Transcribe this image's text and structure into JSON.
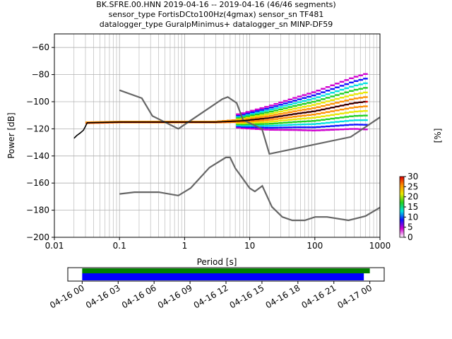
{
  "title_lines": [
    "BK.SFRE.00.HNN   2019-04-16 -- 2019-04-16  (46/46 segments)",
    "sensor_type FortisDCto100Hz(4gmax) sensor_sn TF481",
    "datalogger_type GuralpMinimus+ datalogger_sn MINP-DF59"
  ],
  "chart_data": [
    {
      "type": "heatmap",
      "xlabel": "Period [s]",
      "ylabel": "Power [dB]",
      "xscale": "log",
      "xlim": [
        0.01,
        1000
      ],
      "ylim": [
        -200,
        -50
      ],
      "x_ticks": [
        "0.01",
        "0.1",
        "1",
        "10",
        "100",
        "1000"
      ],
      "y_ticks": [
        "−200",
        "−180",
        "−160",
        "−140",
        "−120",
        "−100",
        "−80",
        "−60"
      ],
      "grid": true,
      "colorbar": {
        "label": "[%]",
        "ticks": [
          "0",
          "5",
          "10",
          "15",
          "20",
          "25",
          "30"
        ],
        "range": [
          0,
          30
        ],
        "colors": [
          "#ffffff",
          "#d000d0",
          "#1010ff",
          "#00e0e0",
          "#20d020",
          "#e8e800",
          "#ff9000",
          "#e00000"
        ]
      },
      "mode_curve": {
        "period": [
          0.02,
          0.022,
          0.025,
          0.028,
          0.032,
          0.1,
          0.3,
          1,
          2,
          3,
          5,
          8,
          10,
          20,
          50,
          100,
          200,
          400,
          600
        ],
        "power": [
          -127,
          -125,
          -123,
          -121,
          -115.5,
          -115,
          -115,
          -115,
          -115,
          -115,
          -114.5,
          -114,
          -113.5,
          -112,
          -109,
          -107,
          -104,
          -101,
          -100
        ]
      },
      "noise_models": [
        {
          "period": [
            0.1,
            0.22,
            0.32,
            0.8,
            3.8,
            4.6,
            6.3,
            7.9,
            15.4,
            20,
            354.8,
            1000
          ],
          "power": [
            -91.5,
            -97.4,
            -110.5,
            -120,
            -98,
            -96.5,
            -101,
            -113.5,
            -120,
            -138.5,
            -126,
            -111.5
          ]
        },
        {
          "period": [
            0.1,
            0.17,
            0.4,
            0.8,
            1.24,
            2.4,
            4.3,
            5,
            6,
            10,
            12,
            15.6,
            21.9,
            31.6,
            45,
            70,
            101,
            154,
            328,
            600,
            1000
          ],
          "power": [
            -168,
            -166.7,
            -166.7,
            -169.2,
            -163.7,
            -148.6,
            -141.1,
            -141.1,
            -149,
            -163.8,
            -166.2,
            -162.1,
            -177.5,
            -185,
            -187.5,
            -187.5,
            -185,
            -185,
            -187.5,
            -184.4,
            -178
          ]
        }
      ]
    },
    {
      "type": "timeline",
      "x_ticks": [
        "04-16 00",
        "04-16 03",
        "04-16 06",
        "04-16 09",
        "04-16 12",
        "04-16 15",
        "04-16 18",
        "04-16 21",
        "04-17 00"
      ],
      "xlim_hours": [
        -1.2,
        25.2
      ],
      "series": [
        {
          "color": "#008000",
          "start_hour": 0,
          "end_hour": 24
        },
        {
          "color": "#0000ff",
          "start_hour": 0,
          "end_hour": 23.5
        }
      ]
    }
  ]
}
